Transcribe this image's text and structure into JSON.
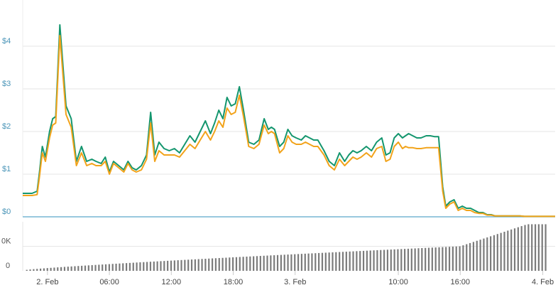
{
  "chart_data": {
    "type": "line",
    "price_axis": {
      "ticks": [
        {
          "label": "$0",
          "value": 0
        },
        {
          "label": "$1",
          "value": 1
        },
        {
          "label": "$2",
          "value": 2
        },
        {
          "label": "$3",
          "value": 3
        },
        {
          "label": "$4",
          "value": 4
        }
      ],
      "ylim": [
        0,
        5
      ]
    },
    "volume_axis": {
      "ticks": [
        {
          "label": "0",
          "value": 0
        },
        {
          "label": "0K",
          "value": 0.5
        }
      ],
      "ylim": [
        0,
        1
      ]
    },
    "x_ticks": [
      "2. Feb",
      "06:00",
      "12:00",
      "18:00",
      "3. Feb",
      "10:00",
      "16:00",
      "4. Feb"
    ],
    "x_tick_hours": [
      0,
      6,
      12,
      18,
      24,
      34,
      40,
      48
    ],
    "xlim": [
      -2.4,
      49.2
    ],
    "grid": true,
    "legend": "none",
    "colors": {
      "series_1": "#14966e",
      "series_2": "#f2a31a",
      "volume": "#7b7b7b",
      "baseline": "#5aa7c9",
      "tick_text": "#4a95b8"
    },
    "series": [
      {
        "color": "#14966e",
        "x": [
          -2.4,
          -1.5,
          -1.0,
          -0.8,
          -0.5,
          -0.2,
          0.2,
          0.5,
          0.8,
          1.2,
          1.8,
          2.3,
          2.8,
          3.3,
          3.8,
          4.3,
          4.7,
          5.2,
          5.6,
          6.0,
          6.4,
          6.9,
          7.4,
          7.8,
          8.2,
          8.6,
          9.1,
          9.6,
          10.0,
          10.4,
          10.8,
          11.3,
          11.8,
          12.3,
          12.8,
          13.3,
          13.8,
          14.3,
          14.8,
          15.3,
          15.8,
          16.2,
          16.6,
          17.0,
          17.4,
          17.8,
          18.2,
          18.6,
          19.0,
          19.5,
          20.0,
          20.5,
          21.0,
          21.4,
          21.7,
          22.0,
          22.5,
          22.9,
          23.3,
          23.7,
          24.1,
          24.6,
          25.0,
          25.4,
          25.8,
          26.2,
          26.8,
          27.3,
          27.8,
          28.3,
          28.8,
          29.2,
          29.6,
          30.0,
          30.4,
          30.9,
          31.4,
          31.9,
          32.4,
          32.8,
          33.2,
          33.6,
          34.0,
          34.4,
          34.7,
          35.0,
          35.4,
          35.8,
          36.2,
          36.7,
          37.1,
          37.5,
          37.9,
          38.3,
          38.6,
          39.0,
          39.4,
          39.8,
          40.2,
          40.6,
          41.0,
          41.4,
          41.8,
          42.2,
          42.6,
          43.0,
          43.4,
          43.8,
          44.2,
          44.6,
          45.0,
          45.4,
          45.8,
          46.2,
          46.8,
          47.4,
          48.0,
          48.6,
          49.2
        ],
        "values": [
          0.55,
          0.55,
          0.6,
          1.0,
          1.65,
          1.4,
          2.0,
          2.3,
          2.35,
          4.5,
          2.6,
          2.3,
          1.3,
          1.65,
          1.3,
          1.35,
          1.3,
          1.25,
          1.4,
          1.05,
          1.3,
          1.2,
          1.1,
          1.3,
          1.15,
          1.1,
          1.2,
          1.45,
          2.45,
          1.45,
          1.75,
          1.6,
          1.55,
          1.6,
          1.5,
          1.7,
          1.9,
          1.75,
          2.0,
          2.25,
          1.95,
          2.2,
          2.5,
          2.3,
          2.8,
          2.6,
          2.65,
          3.05,
          2.5,
          1.75,
          1.7,
          1.8,
          2.3,
          2.05,
          2.1,
          2.05,
          1.65,
          1.75,
          2.05,
          1.9,
          1.85,
          1.8,
          1.9,
          1.85,
          1.8,
          1.8,
          1.55,
          1.3,
          1.2,
          1.5,
          1.3,
          1.45,
          1.55,
          1.5,
          1.55,
          1.65,
          1.55,
          1.75,
          1.85,
          1.45,
          1.5,
          1.85,
          1.95,
          1.85,
          1.9,
          1.95,
          1.9,
          1.85,
          1.85,
          1.9,
          1.9,
          1.88,
          1.88,
          0.7,
          0.25,
          0.35,
          0.4,
          0.2,
          0.25,
          0.2,
          0.2,
          0.15,
          0.1,
          0.1,
          0.05,
          0.05,
          0.02,
          0.02,
          0.02,
          0.02,
          0.02,
          0.02,
          0.02,
          0.01,
          0.01,
          0.01,
          0.01,
          0.01,
          0.01
        ],
        "note_values_end": true
      },
      {
        "color": "#f2a31a",
        "x": [
          -2.4,
          -1.5,
          -1.0,
          -0.8,
          -0.5,
          -0.2,
          0.2,
          0.5,
          0.8,
          1.2,
          1.8,
          2.3,
          2.8,
          3.3,
          3.8,
          4.3,
          4.7,
          5.2,
          5.6,
          6.0,
          6.4,
          6.9,
          7.4,
          7.8,
          8.2,
          8.6,
          9.1,
          9.6,
          10.0,
          10.4,
          10.8,
          11.3,
          11.8,
          12.3,
          12.8,
          13.3,
          13.8,
          14.3,
          14.8,
          15.3,
          15.8,
          16.2,
          16.6,
          17.0,
          17.4,
          17.8,
          18.2,
          18.6,
          19.0,
          19.5,
          20.0,
          20.5,
          21.0,
          21.4,
          21.7,
          22.0,
          22.5,
          22.9,
          23.3,
          23.7,
          24.1,
          24.6,
          25.0,
          25.4,
          25.8,
          26.2,
          26.8,
          27.3,
          27.8,
          28.3,
          28.8,
          29.2,
          29.6,
          30.0,
          30.4,
          30.9,
          31.4,
          31.9,
          32.4,
          32.8,
          33.2,
          33.6,
          34.0,
          34.4,
          34.7,
          35.0,
          35.4,
          35.8,
          36.2,
          36.7,
          37.1,
          37.5,
          37.9,
          38.3,
          38.6,
          39.0,
          39.4,
          39.8,
          40.2,
          40.6,
          41.0,
          41.4,
          41.8,
          42.2,
          42.6,
          43.0,
          43.4,
          43.8,
          44.2,
          44.6,
          45.0,
          45.4,
          45.8,
          46.2,
          46.8,
          47.4,
          48.0,
          48.6,
          49.2
        ],
        "values": [
          0.5,
          0.5,
          0.52,
          0.9,
          1.5,
          1.3,
          1.85,
          2.15,
          2.2,
          4.25,
          2.4,
          2.1,
          1.2,
          1.5,
          1.2,
          1.25,
          1.2,
          1.2,
          1.3,
          1.0,
          1.25,
          1.15,
          1.05,
          1.25,
          1.1,
          1.05,
          1.1,
          1.35,
          2.2,
          1.3,
          1.55,
          1.45,
          1.45,
          1.45,
          1.4,
          1.55,
          1.7,
          1.6,
          1.8,
          2.0,
          1.8,
          2.0,
          2.25,
          2.1,
          2.55,
          2.4,
          2.45,
          2.85,
          2.35,
          1.65,
          1.6,
          1.7,
          2.15,
          1.95,
          2.0,
          1.95,
          1.5,
          1.6,
          1.9,
          1.75,
          1.7,
          1.7,
          1.75,
          1.7,
          1.65,
          1.65,
          1.45,
          1.2,
          1.1,
          1.35,
          1.2,
          1.3,
          1.4,
          1.35,
          1.4,
          1.5,
          1.4,
          1.6,
          1.65,
          1.3,
          1.35,
          1.65,
          1.75,
          1.6,
          1.65,
          1.62,
          1.62,
          1.6,
          1.6,
          1.62,
          1.62,
          1.62,
          1.62,
          0.6,
          0.2,
          0.3,
          0.35,
          0.15,
          0.2,
          0.15,
          0.15,
          0.1,
          0.08,
          0.08,
          0.04,
          0.04,
          0.02,
          0.02,
          0.02,
          0.02,
          0.02,
          0.02,
          0.02,
          0.01,
          0.01,
          0.01,
          0.01,
          0.01,
          0.01
        ]
      }
    ],
    "volume": {
      "x_start": -2.0,
      "x_step": 0.333,
      "count": 152,
      "values_start": 0.02,
      "values_mid": 0.4,
      "values_pre_end": 0.5,
      "values_end": 0.95
    }
  }
}
